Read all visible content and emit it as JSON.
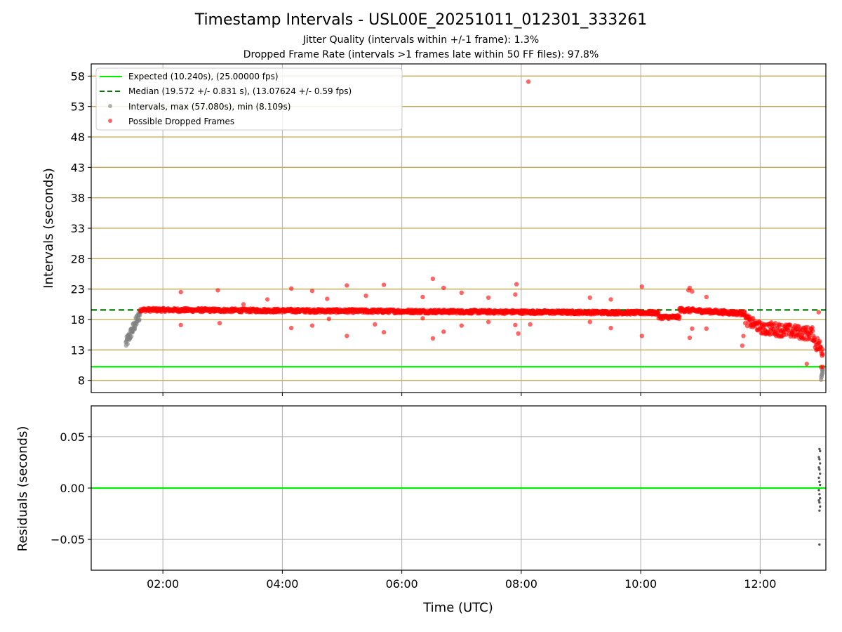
{
  "title": "Timestamp Intervals - USL00E_20251011_012301_333261",
  "subtitle_1": "Jitter Quality (intervals within +/-1 frame): 1.3%",
  "subtitle_2": "Dropped Frame Rate (intervals >1 frames late within 50 FF files): 97.8%",
  "colors": {
    "expected": "#00ee00",
    "median": "#007a00",
    "gold_grid": "#c8a850",
    "gray_grid": "#b0b0b0",
    "interval_points": "#808080",
    "dropped_points": "#ff0000",
    "residual_points": "#555555"
  },
  "chart_data": [
    {
      "type": "scatter",
      "name": "intervals",
      "ylabel": "Intervals (seconds)",
      "xlabel": "",
      "xlim_hours": [
        0.8,
        13.1
      ],
      "ylim": [
        6,
        60
      ],
      "y_ticks": [
        8,
        13,
        18,
        23,
        28,
        33,
        38,
        43,
        48,
        53,
        58
      ],
      "y_tick_labels": [
        "8",
        "13",
        "18",
        "23",
        "28",
        "33",
        "38",
        "43",
        "48",
        "53",
        "58"
      ],
      "x_ticks_hours": [
        2,
        4,
        6,
        8,
        10,
        12
      ],
      "grid": "on",
      "legend_position": "top-left",
      "legend": [
        "Expected (10.240s), (25.00000 fps)",
        "Median (19.572 +/- 0.831 s), (13.07624 +/- 0.59 fps)",
        "Intervals, max (57.080s), min (8.109s)",
        "Possible Dropped Frames"
      ],
      "expected_line": 10.24,
      "median_line": 19.572,
      "segments_intervals": [
        {
          "start_h": 1.38,
          "end_h": 1.62,
          "start_v": 14.0,
          "end_v": 19.0,
          "noise": 0.9
        },
        {
          "start_h": 13.02,
          "end_h": 13.05,
          "start_v": 8.4,
          "end_v": 10.0,
          "noise": 0.6
        }
      ],
      "segments_dropped": [
        {
          "start_h": 1.62,
          "end_h": 10.3,
          "start_v": 19.6,
          "end_v": 19.1,
          "noise": 0.3
        },
        {
          "start_h": 10.3,
          "end_h": 10.65,
          "start_v": 18.4,
          "end_v": 18.4,
          "noise": 0.3
        },
        {
          "start_h": 10.65,
          "end_h": 11.75,
          "start_v": 19.6,
          "end_v": 19.0,
          "noise": 0.35
        },
        {
          "start_h": 11.75,
          "end_h": 12.1,
          "start_v": 18.0,
          "end_v": 16.2,
          "noise": 0.9
        },
        {
          "start_h": 12.1,
          "end_h": 12.9,
          "start_v": 16.6,
          "end_v": 15.6,
          "noise": 1.1
        },
        {
          "start_h": 12.9,
          "end_h": 13.05,
          "start_v": 14.5,
          "end_v": 13.0,
          "noise": 1.3
        }
      ],
      "dropped_outliers": [
        {
          "h": 8.12,
          "v": 57.08
        },
        {
          "h": 2.3,
          "v": 22.5
        },
        {
          "h": 2.3,
          "v": 17.1
        },
        {
          "h": 2.92,
          "v": 22.8
        },
        {
          "h": 2.95,
          "v": 17.4
        },
        {
          "h": 3.35,
          "v": 20.5
        },
        {
          "h": 3.75,
          "v": 21.3
        },
        {
          "h": 4.15,
          "v": 23.1
        },
        {
          "h": 4.15,
          "v": 16.6
        },
        {
          "h": 4.5,
          "v": 22.7
        },
        {
          "h": 4.5,
          "v": 17.0
        },
        {
          "h": 4.75,
          "v": 21.4
        },
        {
          "h": 4.78,
          "v": 18.1
        },
        {
          "h": 5.08,
          "v": 23.6
        },
        {
          "h": 5.08,
          "v": 15.3
        },
        {
          "h": 5.4,
          "v": 21.9
        },
        {
          "h": 5.55,
          "v": 17.2
        },
        {
          "h": 5.7,
          "v": 23.7
        },
        {
          "h": 5.7,
          "v": 15.9
        },
        {
          "h": 6.35,
          "v": 21.7
        },
        {
          "h": 6.35,
          "v": 18.2
        },
        {
          "h": 6.52,
          "v": 24.7
        },
        {
          "h": 6.52,
          "v": 14.9
        },
        {
          "h": 6.7,
          "v": 23.2
        },
        {
          "h": 6.7,
          "v": 16.0
        },
        {
          "h": 7.0,
          "v": 22.4
        },
        {
          "h": 7.0,
          "v": 17.0
        },
        {
          "h": 7.45,
          "v": 21.6
        },
        {
          "h": 7.45,
          "v": 17.6
        },
        {
          "h": 7.92,
          "v": 23.8
        },
        {
          "h": 7.9,
          "v": 22.1
        },
        {
          "h": 7.95,
          "v": 15.7
        },
        {
          "h": 7.9,
          "v": 17.1
        },
        {
          "h": 8.15,
          "v": 17.2
        },
        {
          "h": 9.15,
          "v": 21.6
        },
        {
          "h": 9.15,
          "v": 17.6
        },
        {
          "h": 9.5,
          "v": 21.3
        },
        {
          "h": 9.5,
          "v": 16.6
        },
        {
          "h": 10.02,
          "v": 23.4
        },
        {
          "h": 10.02,
          "v": 15.3
        },
        {
          "h": 10.8,
          "v": 22.8
        },
        {
          "h": 10.82,
          "v": 23.2
        },
        {
          "h": 10.82,
          "v": 15.0
        },
        {
          "h": 10.86,
          "v": 22.6
        },
        {
          "h": 10.86,
          "v": 16.5
        },
        {
          "h": 11.1,
          "v": 21.7
        },
        {
          "h": 11.1,
          "v": 16.5
        },
        {
          "h": 11.7,
          "v": 13.7
        },
        {
          "h": 11.72,
          "v": 15.3
        },
        {
          "h": 12.78,
          "v": 10.7
        },
        {
          "h": 12.98,
          "v": 19.2
        },
        {
          "h": 13.02,
          "v": 10.2
        },
        {
          "h": 13.05,
          "v": 10.2
        }
      ]
    },
    {
      "type": "scatter",
      "name": "residuals",
      "ylabel": "Residuals (seconds)",
      "xlabel": "Time (UTC)",
      "xlim_hours": [
        0.8,
        13.1
      ],
      "ylim": [
        -0.08,
        0.08
      ],
      "y_ticks": [
        0.05,
        0.0,
        -0.05
      ],
      "y_tick_labels": [
        "0.05",
        "0.00",
        "−0.05"
      ],
      "x_ticks_hours": [
        2,
        4,
        6,
        8,
        10,
        12
      ],
      "x_tick_labels": [
        "02:00",
        "04:00",
        "06:00",
        "08:00",
        "10:00",
        "12:00"
      ],
      "grid": "on",
      "zero_line": 0.0,
      "residual_points": [
        {
          "h": 13.04,
          "v": 0.038
        },
        {
          "h": 13.05,
          "v": 0.036
        },
        {
          "h": 13.03,
          "v": 0.03
        },
        {
          "h": 13.04,
          "v": 0.028
        },
        {
          "h": 13.05,
          "v": 0.024
        },
        {
          "h": 13.03,
          "v": 0.02
        },
        {
          "h": 13.04,
          "v": 0.018
        },
        {
          "h": 13.05,
          "v": 0.014
        },
        {
          "h": 13.03,
          "v": 0.01
        },
        {
          "h": 13.04,
          "v": 0.006
        },
        {
          "h": 13.05,
          "v": 0.003
        },
        {
          "h": 13.03,
          "v": -0.002
        },
        {
          "h": 13.04,
          "v": -0.006
        },
        {
          "h": 13.05,
          "v": -0.01
        },
        {
          "h": 13.03,
          "v": -0.012
        },
        {
          "h": 13.04,
          "v": -0.014
        },
        {
          "h": 13.05,
          "v": -0.018
        },
        {
          "h": 13.04,
          "v": -0.022
        },
        {
          "h": 13.04,
          "v": -0.055
        }
      ]
    }
  ]
}
